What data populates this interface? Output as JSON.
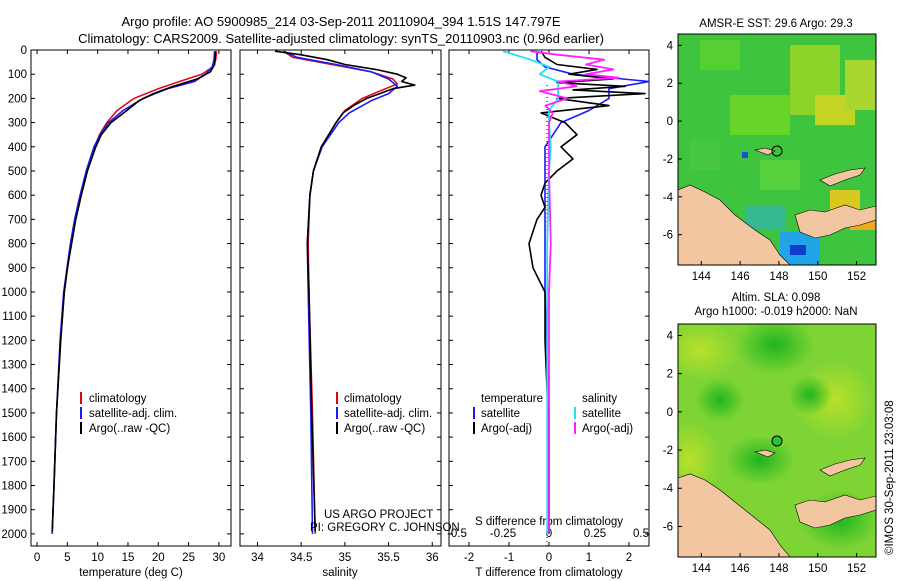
{
  "header": {
    "title_line1": "Argo profile: AO 5900985_214 03-Sep-2011 20110904_394 1.51S 147.797E",
    "title_line2": "Climatology: CARS2009. Satellite-adjusted climatology: synTS_20110903.nc (0.96d earlier)"
  },
  "credits": {
    "project": "US ARGO PROJECT",
    "pi": "PI: GREGORY C. JOHNSON",
    "imos": "©IMOS 30-Sep-2011 23:03:08"
  },
  "colors": {
    "climatology": "#e8000b",
    "satellite": "#1a1aff",
    "argo": "#000000",
    "sal_satellite": "#22e0f0",
    "sal_argo": "#ff22ff",
    "land": "#f2c6a0"
  },
  "depth_axis": {
    "ylim": [
      0,
      2050
    ],
    "ticks": [
      "0",
      "100",
      "200",
      "300",
      "400",
      "500",
      "600",
      "700",
      "800",
      "900",
      "1000",
      "1100",
      "1200",
      "1300",
      "1400",
      "1500",
      "1600",
      "1700",
      "1800",
      "1900",
      "2000"
    ]
  },
  "chart_data": [
    {
      "type": "line",
      "id": "temperature",
      "xlabel": "temperature (deg C)",
      "xlim": [
        -1,
        32
      ],
      "xticks": [
        "0",
        "5",
        "10",
        "15",
        "20",
        "25",
        "30"
      ],
      "legend": [
        "climatology",
        "satellite-adj. clim.",
        "Argo(..raw -QC)"
      ],
      "series": [
        {
          "name": "climatology",
          "depth": [
            5,
            40,
            70,
            100,
            130,
            160,
            200,
            250,
            300,
            350,
            400,
            500,
            600,
            700,
            800,
            1000,
            1200,
            1500,
            1800,
            2000
          ],
          "values": [
            29.6,
            29.5,
            29.0,
            27.2,
            23.5,
            20.0,
            16.0,
            13.2,
            11.5,
            10.3,
            9.5,
            8.2,
            7.2,
            6.3,
            5.6,
            4.5,
            3.9,
            3.2,
            2.8,
            2.5
          ]
        },
        {
          "name": "satellite-adj. clim.",
          "depth": [
            5,
            40,
            70,
            100,
            130,
            160,
            200,
            250,
            300,
            350,
            400,
            500,
            600,
            700,
            800,
            1000,
            1200,
            1500,
            1800,
            2000
          ],
          "values": [
            29.3,
            29.2,
            28.9,
            27.8,
            26.0,
            21.5,
            17.5,
            14.2,
            11.8,
            10.4,
            9.4,
            8.1,
            7.1,
            6.2,
            5.5,
            4.4,
            3.8,
            3.2,
            2.8,
            2.5
          ]
        },
        {
          "name": "Argo(..raw -QC)",
          "depth": [
            5,
            30,
            60,
            90,
            120,
            150,
            180,
            210,
            250,
            300,
            350,
            400,
            500,
            600,
            700,
            800,
            900,
            1000,
            1200,
            1500,
            1800,
            1990
          ],
          "values": [
            29.4,
            29.4,
            29.3,
            28.6,
            26.4,
            22.5,
            19.2,
            16.8,
            14.8,
            12.2,
            10.6,
            9.7,
            8.3,
            7.3,
            6.4,
            5.7,
            5.0,
            4.5,
            3.9,
            3.2,
            2.8,
            2.5
          ]
        }
      ]
    },
    {
      "type": "line",
      "id": "salinity",
      "xlabel": "salinity",
      "xlim": [
        33.8,
        36.1
      ],
      "xticks": [
        "34",
        "34.5",
        "35",
        "35.5",
        "36"
      ],
      "legend": [
        "climatology",
        "satellite-adj. clim.",
        "Argo(..raw -QC)"
      ],
      "series": [
        {
          "name": "climatology",
          "depth": [
            5,
            30,
            60,
            90,
            120,
            140,
            170,
            200,
            250,
            300,
            400,
            500,
            600,
            800,
            1000,
            1500,
            2000
          ],
          "values": [
            34.3,
            34.4,
            34.85,
            35.3,
            35.55,
            35.6,
            35.4,
            35.2,
            35.0,
            34.9,
            34.73,
            34.64,
            34.6,
            34.58,
            34.59,
            34.63,
            34.66
          ]
        },
        {
          "name": "satellite-adj. clim.",
          "depth": [
            5,
            30,
            60,
            90,
            120,
            150,
            180,
            210,
            260,
            300,
            400,
            500,
            600,
            800,
            1000,
            1500,
            2000
          ],
          "values": [
            34.3,
            34.45,
            34.9,
            35.3,
            35.5,
            35.6,
            35.5,
            35.3,
            35.05,
            34.93,
            34.74,
            34.64,
            34.6,
            34.57,
            34.58,
            34.61,
            34.63
          ]
        },
        {
          "name": "Argo(..raw -QC)",
          "depth": [
            5,
            20,
            40,
            60,
            80,
            100,
            115,
            130,
            145,
            160,
            180,
            200,
            230,
            260,
            300,
            400,
            500,
            600,
            800,
            1000,
            1500,
            1990
          ],
          "values": [
            34.2,
            34.5,
            34.8,
            35.0,
            35.35,
            35.6,
            35.7,
            35.65,
            35.8,
            35.55,
            35.4,
            35.25,
            35.1,
            34.98,
            34.9,
            34.73,
            34.64,
            34.6,
            34.57,
            34.59,
            34.62,
            34.66
          ]
        }
      ]
    },
    {
      "type": "line",
      "id": "differences",
      "xlabel_t": "T difference from climatology",
      "xlabel_s": "S difference from climatology",
      "xlim": [
        -2.5,
        2.5
      ],
      "xticks_t": [
        "-2",
        "-1",
        "0",
        "1",
        "2"
      ],
      "xticks_s": [
        "-0.5",
        "-0.25",
        "0",
        "0.25",
        "0.5"
      ],
      "legend_headers": [
        "temperature",
        "salinity"
      ],
      "legend": [
        "satellite",
        "Argo(-adj)",
        "satellite",
        "Argo(-adj)"
      ],
      "series": [
        {
          "name": "T satellite",
          "depth": [
            5,
            40,
            70,
            100,
            130,
            160,
            200,
            250,
            300,
            400,
            500,
            600,
            800,
            1000,
            1500,
            2000
          ],
          "values": [
            -0.3,
            -0.3,
            -0.1,
            0.6,
            2.5,
            1.5,
            1.5,
            1.0,
            0.3,
            -0.1,
            -0.1,
            -0.1,
            -0.1,
            -0.1,
            0.0,
            0.0
          ]
        },
        {
          "name": "T Argo(-adj)",
          "depth": [
            5,
            30,
            60,
            80,
            100,
            120,
            135,
            150,
            165,
            180,
            200,
            230,
            260,
            300,
            350,
            400,
            450,
            500,
            550,
            600,
            650,
            700,
            800,
            900,
            1000,
            1100,
            1200,
            1400,
            1600,
            1800,
            1990
          ],
          "values": [
            -0.2,
            -0.1,
            0.2,
            1.2,
            0.5,
            1.6,
            0.2,
            1.9,
            0.6,
            2.4,
            0.2,
            1.5,
            -0.2,
            0.4,
            0.7,
            0.3,
            0.6,
            0.2,
            -0.1,
            -0.2,
            -0.1,
            -0.3,
            -0.5,
            -0.4,
            -0.1,
            -0.1,
            -0.1,
            -0.05,
            0.0,
            0.0,
            0.0
          ]
        },
        {
          "name": "S satellite",
          "depth": [
            5,
            40,
            70,
            100,
            130,
            160,
            200,
            250,
            300,
            400,
            500,
            800,
            1000,
            1500,
            2000
          ],
          "values": [
            -0.25,
            -0.1,
            0.0,
            -0.05,
            0.05,
            0.05,
            0.05,
            0.0,
            0.0,
            0.01,
            0.0,
            -0.01,
            -0.01,
            -0.01,
            -0.01
          ]
        },
        {
          "name": "S Argo(-adj)",
          "depth": [
            5,
            20,
            40,
            60,
            80,
            100,
            115,
            130,
            150,
            170,
            200,
            230,
            260,
            300,
            400,
            500,
            800,
            1000,
            1500,
            1990
          ],
          "values": [
            -0.1,
            0.05,
            0.3,
            0.2,
            0.35,
            0.2,
            0.38,
            0.05,
            0.15,
            -0.05,
            0.1,
            -0.02,
            0.02,
            0.0,
            0.0,
            0.0,
            0.01,
            0.0,
            0.0,
            0.0
          ]
        }
      ]
    },
    {
      "type": "heatmap",
      "id": "sst_map",
      "title": "AMSR-E SST: 29.6 Argo: 29.3",
      "xticks": [
        "144",
        "146",
        "148",
        "150",
        "152"
      ],
      "yticks": [
        "4",
        "2",
        "0",
        "-2",
        "-4",
        "-6"
      ],
      "marker": {
        "lon": 147.797,
        "lat": -1.51
      }
    },
    {
      "type": "heatmap",
      "id": "sla_map",
      "title_line1": "Altim. SLA: 0.098",
      "title_line2": "Argo h1000: -0.019 h2000: NaN",
      "xticks": [
        "144",
        "146",
        "148",
        "150",
        "152"
      ],
      "yticks": [
        "4",
        "2",
        "0",
        "-2",
        "-4",
        "-6"
      ],
      "marker": {
        "lon": 147.797,
        "lat": -1.51
      }
    }
  ]
}
